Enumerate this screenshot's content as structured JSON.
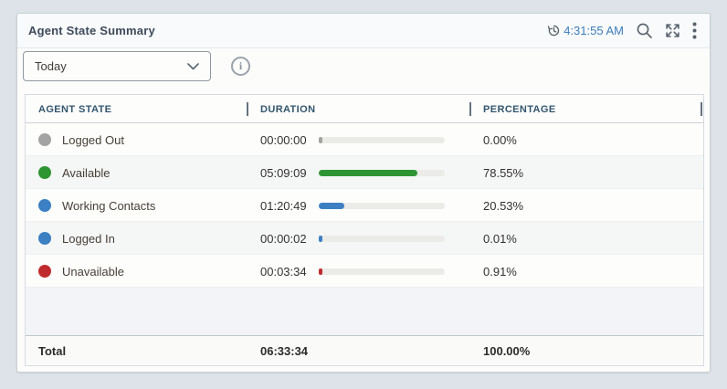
{
  "widget": {
    "title": "Agent State Summary",
    "header": {
      "timestamp": "4:31:55 AM",
      "timestamp_color": "#3c7dbb",
      "icons": [
        "history-clock-icon",
        "search-icon",
        "expand-icon",
        "kebab-menu-icon"
      ]
    },
    "toolbar": {
      "filter_selected": "Today",
      "info_glyph": "i"
    },
    "table": {
      "columns": {
        "state": "AGENT STATE",
        "duration": "DURATION",
        "percentage": "PERCENTAGE"
      },
      "bar_track_color": "#ebebe8",
      "rows": [
        {
          "state": "Logged Out",
          "duration": "00:00:00",
          "percentage": "0.00%",
          "percent_value": 0.0,
          "color": "#a3a3a3"
        },
        {
          "state": "Available",
          "duration": "05:09:09",
          "percentage": "78.55%",
          "percent_value": 78.55,
          "color": "#2e9533"
        },
        {
          "state": "Working Contacts",
          "duration": "01:20:49",
          "percentage": "20.53%",
          "percent_value": 20.53,
          "color": "#3c80c3"
        },
        {
          "state": "Logged In",
          "duration": "00:00:02",
          "percentage": "0.01%",
          "percent_value": 0.01,
          "color": "#3c80c3"
        },
        {
          "state": "Unavailable",
          "duration": "00:03:34",
          "percentage": "0.91%",
          "percent_value": 0.91,
          "color": "#bf2b2d"
        }
      ],
      "total": {
        "label": "Total",
        "duration": "06:33:34",
        "percentage": "100.00%"
      }
    }
  }
}
